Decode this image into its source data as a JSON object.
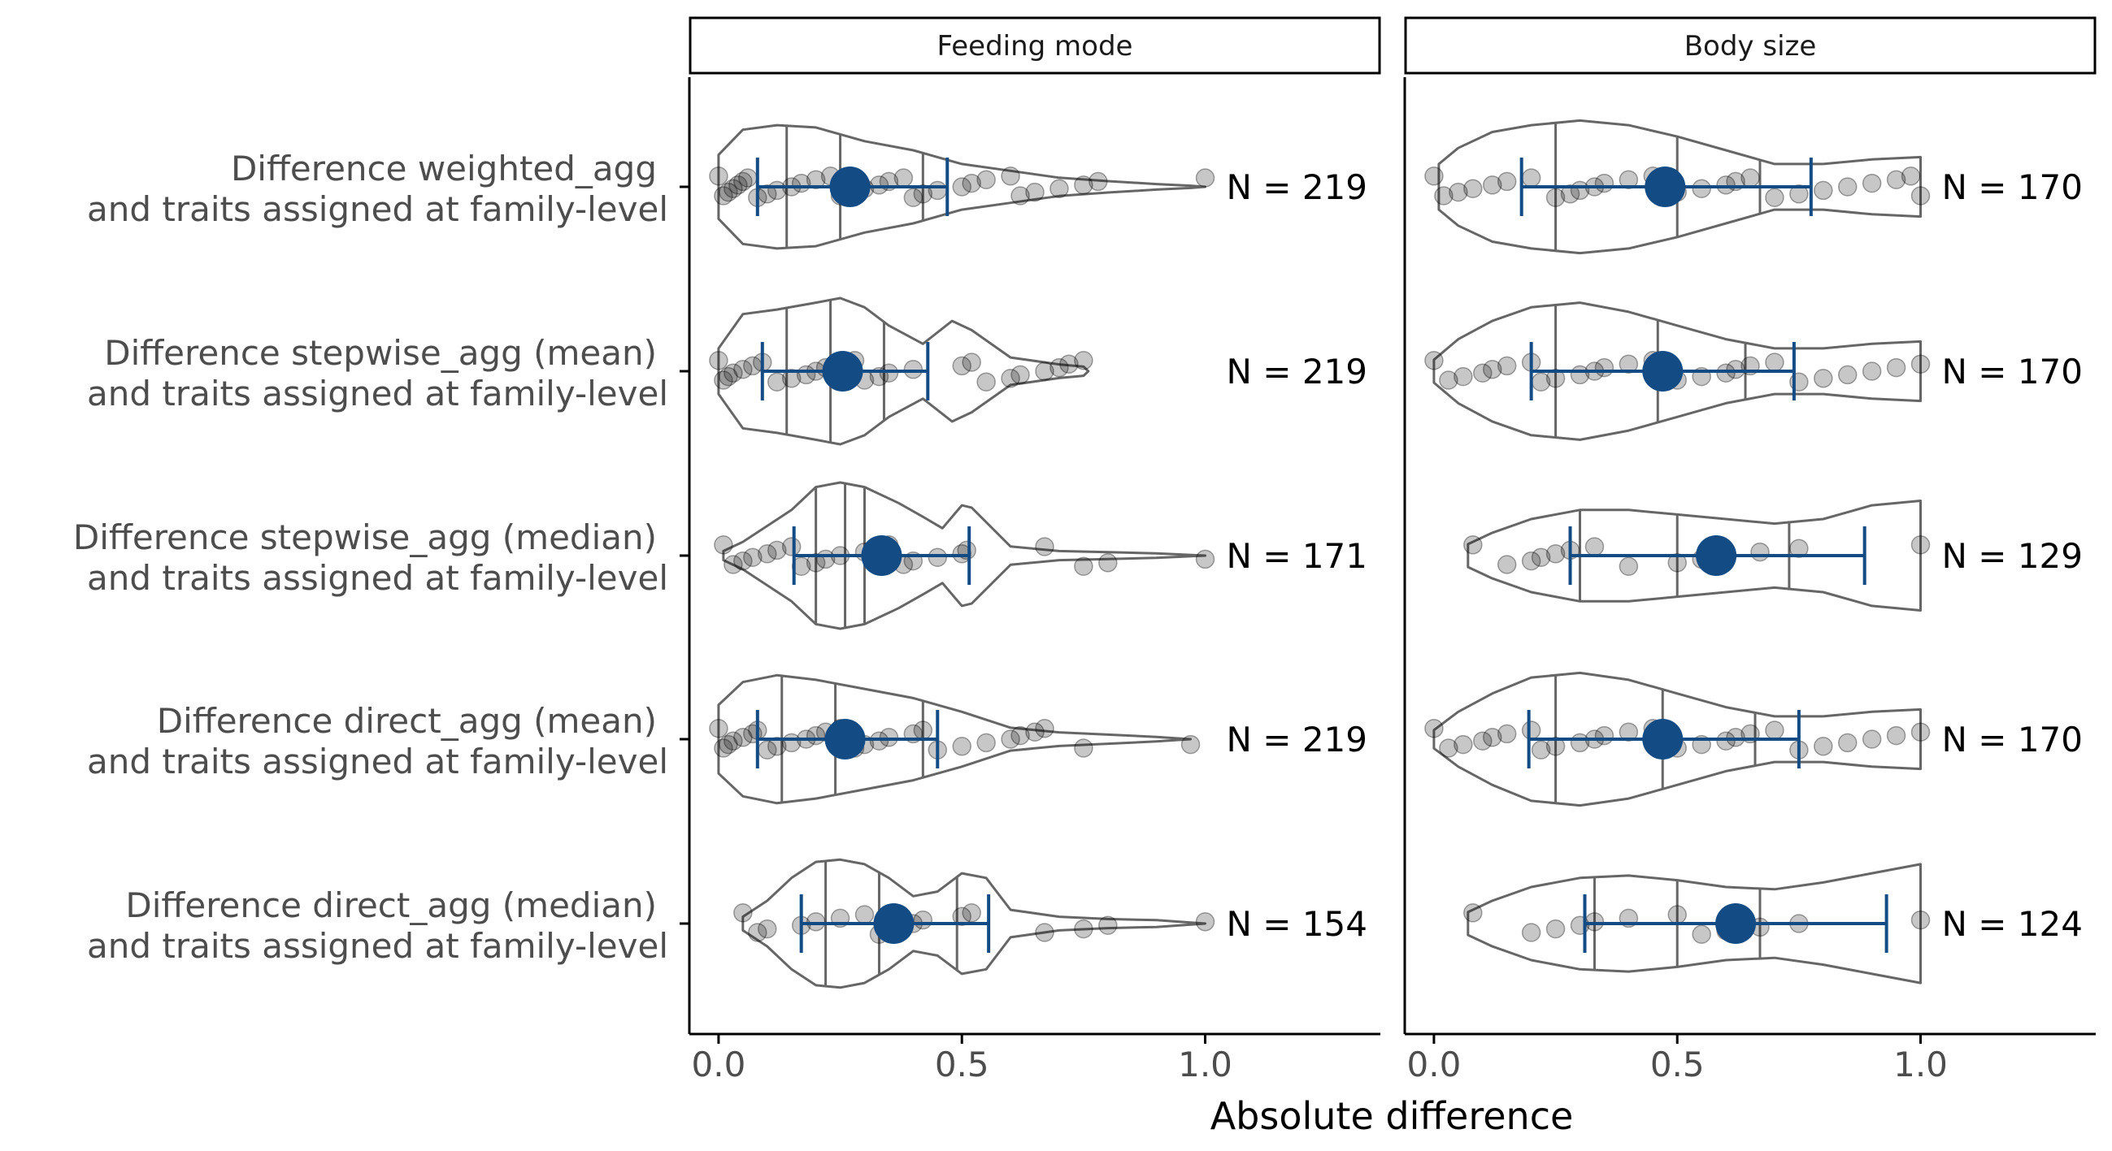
{
  "chart_data": {
    "type": "violin",
    "xlabel": "Absolute difference",
    "xlim": [
      -0.06,
      1.36
    ],
    "x_ticks": [
      {
        "value": 0.0,
        "label": "0.0"
      },
      {
        "value": 0.5,
        "label": "0.5"
      },
      {
        "value": 1.0,
        "label": "1.0"
      }
    ],
    "categories": [
      [
        "Difference weighted_agg",
        "and traits assigned at family-level"
      ],
      [
        "Difference stepwise_agg (mean)",
        "and traits assigned at family-level"
      ],
      [
        "Difference stepwise_agg (median)",
        "and traits assigned at family-level"
      ],
      [
        "Difference direct_agg (mean)",
        "and traits assigned at family-level"
      ],
      [
        "Difference direct_agg (median)",
        "and traits assigned at family-level"
      ]
    ],
    "colors": {
      "summary": "#134b85",
      "violin": "#666666",
      "points": "#000000",
      "axis": "#000000",
      "strip_bg": "#ffffff"
    },
    "panels": [
      {
        "strip": "Feeding mode",
        "rows": [
          {
            "n_label": "N = 219",
            "mean": 0.27,
            "low": 0.08,
            "high": 0.47,
            "quantiles": [
              0.14,
              0.25,
              0.42
            ],
            "violin": [
              [
                0.0,
                0.14
              ],
              [
                0.05,
                0.25
              ],
              [
                0.12,
                0.27
              ],
              [
                0.2,
                0.26
              ],
              [
                0.3,
                0.2
              ],
              [
                0.4,
                0.16
              ],
              [
                0.5,
                0.1
              ],
              [
                0.6,
                0.07
              ],
              [
                0.7,
                0.04
              ],
              [
                0.8,
                0.025
              ],
              [
                0.9,
                0.012
              ],
              [
                0.97,
                0.005
              ],
              [
                1.0,
                0
              ]
            ],
            "points": [
              0.0,
              0.01,
              0.02,
              0.03,
              0.04,
              0.05,
              0.06,
              0.08,
              0.1,
              0.12,
              0.15,
              0.17,
              0.2,
              0.23,
              0.25,
              0.28,
              0.3,
              0.33,
              0.35,
              0.38,
              0.4,
              0.42,
              0.45,
              0.5,
              0.52,
              0.55,
              0.6,
              0.62,
              0.65,
              0.7,
              0.75,
              0.78,
              1.0
            ]
          },
          {
            "n_label": "N = 219",
            "mean": 0.255,
            "low": 0.09,
            "high": 0.43,
            "quantiles": [
              0.14,
              0.23,
              0.34
            ],
            "violin": [
              [
                0.0,
                0.1
              ],
              [
                0.05,
                0.25
              ],
              [
                0.12,
                0.27
              ],
              [
                0.2,
                0.3
              ],
              [
                0.25,
                0.32
              ],
              [
                0.3,
                0.28
              ],
              [
                0.35,
                0.2
              ],
              [
                0.42,
                0.12
              ],
              [
                0.48,
                0.22
              ],
              [
                0.52,
                0.18
              ],
              [
                0.6,
                0.06
              ],
              [
                0.7,
                0.03
              ],
              [
                0.75,
                0.02
              ],
              [
                0.76,
                0
              ]
            ],
            "points": [
              0.0,
              0.01,
              0.02,
              0.03,
              0.05,
              0.07,
              0.09,
              0.12,
              0.15,
              0.18,
              0.2,
              0.22,
              0.25,
              0.28,
              0.3,
              0.33,
              0.35,
              0.4,
              0.5,
              0.52,
              0.55,
              0.6,
              0.62,
              0.67,
              0.7,
              0.72,
              0.75
            ]
          },
          {
            "n_label": "N = 171",
            "mean": 0.335,
            "low": 0.155,
            "high": 0.515,
            "quantiles": [
              0.2,
              0.26,
              0.3
            ],
            "violin": [
              [
                0.01,
                0.02
              ],
              [
                0.05,
                0.06
              ],
              [
                0.15,
                0.2
              ],
              [
                0.2,
                0.3
              ],
              [
                0.25,
                0.32
              ],
              [
                0.3,
                0.3
              ],
              [
                0.37,
                0.23
              ],
              [
                0.42,
                0.17
              ],
              [
                0.46,
                0.12
              ],
              [
                0.5,
                0.22
              ],
              [
                0.52,
                0.21
              ],
              [
                0.6,
                0.04
              ],
              [
                0.7,
                0.02
              ],
              [
                0.8,
                0.015
              ],
              [
                0.9,
                0.01
              ],
              [
                1.0,
                0
              ]
            ],
            "points": [
              0.01,
              0.03,
              0.05,
              0.07,
              0.1,
              0.12,
              0.15,
              0.17,
              0.2,
              0.22,
              0.25,
              0.3,
              0.33,
              0.35,
              0.38,
              0.4,
              0.45,
              0.5,
              0.51,
              0.67,
              0.75,
              0.8,
              1.0
            ]
          },
          {
            "n_label": "N = 219",
            "mean": 0.26,
            "low": 0.08,
            "high": 0.45,
            "quantiles": [
              0.13,
              0.24,
              0.42
            ],
            "violin": [
              [
                0.0,
                0.15
              ],
              [
                0.05,
                0.25
              ],
              [
                0.12,
                0.28
              ],
              [
                0.2,
                0.26
              ],
              [
                0.3,
                0.22
              ],
              [
                0.4,
                0.18
              ],
              [
                0.5,
                0.12
              ],
              [
                0.6,
                0.05
              ],
              [
                0.7,
                0.03
              ],
              [
                0.8,
                0.02
              ],
              [
                0.9,
                0.01
              ],
              [
                0.97,
                0
              ]
            ],
            "points": [
              0.0,
              0.01,
              0.02,
              0.03,
              0.05,
              0.07,
              0.08,
              0.1,
              0.12,
              0.15,
              0.18,
              0.2,
              0.22,
              0.25,
              0.28,
              0.3,
              0.33,
              0.35,
              0.4,
              0.42,
              0.45,
              0.5,
              0.55,
              0.6,
              0.62,
              0.65,
              0.67,
              0.75,
              0.97
            ]
          },
          {
            "n_label": "N = 154",
            "mean": 0.36,
            "low": 0.17,
            "high": 0.555,
            "quantiles": [
              0.22,
              0.33,
              0.49
            ],
            "violin": [
              [
                0.05,
                0.03
              ],
              [
                0.1,
                0.1
              ],
              [
                0.15,
                0.2
              ],
              [
                0.2,
                0.27
              ],
              [
                0.25,
                0.28
              ],
              [
                0.3,
                0.26
              ],
              [
                0.35,
                0.2
              ],
              [
                0.4,
                0.12
              ],
              [
                0.45,
                0.14
              ],
              [
                0.5,
                0.22
              ],
              [
                0.55,
                0.2
              ],
              [
                0.6,
                0.06
              ],
              [
                0.7,
                0.03
              ],
              [
                0.8,
                0.02
              ],
              [
                0.9,
                0.015
              ],
              [
                1.0,
                0
              ]
            ],
            "points": [
              0.05,
              0.08,
              0.1,
              0.17,
              0.2,
              0.25,
              0.3,
              0.33,
              0.35,
              0.38,
              0.4,
              0.42,
              0.5,
              0.52,
              0.67,
              0.75,
              0.8,
              1.0
            ]
          }
        ]
      },
      {
        "strip": "Body size",
        "rows": [
          {
            "n_label": "N = 170",
            "mean": 0.475,
            "low": 0.18,
            "high": 0.775,
            "quantiles": [
              0.25,
              0.5,
              0.67
            ],
            "violin": [
              [
                0.01,
                0.1
              ],
              [
                0.05,
                0.17
              ],
              [
                0.12,
                0.24
              ],
              [
                0.2,
                0.27
              ],
              [
                0.3,
                0.29
              ],
              [
                0.4,
                0.27
              ],
              [
                0.5,
                0.22
              ],
              [
                0.6,
                0.16
              ],
              [
                0.7,
                0.1
              ],
              [
                0.8,
                0.1
              ],
              [
                0.9,
                0.12
              ],
              [
                1.0,
                0.13
              ]
            ],
            "points": [
              0.0,
              0.02,
              0.05,
              0.08,
              0.12,
              0.15,
              0.2,
              0.25,
              0.28,
              0.3,
              0.33,
              0.35,
              0.4,
              0.45,
              0.48,
              0.5,
              0.55,
              0.6,
              0.62,
              0.65,
              0.7,
              0.75,
              0.8,
              0.85,
              0.9,
              0.95,
              0.98,
              1.0
            ]
          },
          {
            "n_label": "N = 170",
            "mean": 0.47,
            "low": 0.2,
            "high": 0.74,
            "quantiles": [
              0.25,
              0.46,
              0.64
            ],
            "violin": [
              [
                0.0,
                0.05
              ],
              [
                0.05,
                0.14
              ],
              [
                0.12,
                0.22
              ],
              [
                0.2,
                0.28
              ],
              [
                0.3,
                0.3
              ],
              [
                0.4,
                0.26
              ],
              [
                0.5,
                0.2
              ],
              [
                0.6,
                0.14
              ],
              [
                0.7,
                0.1
              ],
              [
                0.8,
                0.1
              ],
              [
                0.9,
                0.12
              ],
              [
                1.0,
                0.13
              ]
            ],
            "points": [
              0.0,
              0.03,
              0.06,
              0.1,
              0.12,
              0.15,
              0.2,
              0.22,
              0.25,
              0.3,
              0.33,
              0.35,
              0.4,
              0.45,
              0.5,
              0.55,
              0.6,
              0.62,
              0.65,
              0.7,
              0.75,
              0.8,
              0.85,
              0.9,
              0.95,
              1.0
            ]
          },
          {
            "n_label": "N = 129",
            "mean": 0.58,
            "low": 0.28,
            "high": 0.885,
            "quantiles": [
              0.3,
              0.5,
              0.73
            ],
            "violin": [
              [
                0.07,
                0.05
              ],
              [
                0.12,
                0.1
              ],
              [
                0.2,
                0.16
              ],
              [
                0.3,
                0.2
              ],
              [
                0.4,
                0.2
              ],
              [
                0.5,
                0.18
              ],
              [
                0.6,
                0.16
              ],
              [
                0.7,
                0.14
              ],
              [
                0.8,
                0.16
              ],
              [
                0.9,
                0.22
              ],
              [
                1.0,
                0.24
              ]
            ],
            "points": [
              0.08,
              0.15,
              0.2,
              0.22,
              0.25,
              0.28,
              0.33,
              0.4,
              0.5,
              0.55,
              0.6,
              0.67,
              0.75,
              1.0
            ]
          },
          {
            "n_label": "N = 170",
            "mean": 0.47,
            "low": 0.195,
            "high": 0.75,
            "quantiles": [
              0.25,
              0.47,
              0.66
            ],
            "violin": [
              [
                0.0,
                0.04
              ],
              [
                0.05,
                0.12
              ],
              [
                0.12,
                0.2
              ],
              [
                0.2,
                0.27
              ],
              [
                0.3,
                0.29
              ],
              [
                0.4,
                0.26
              ],
              [
                0.5,
                0.2
              ],
              [
                0.6,
                0.14
              ],
              [
                0.7,
                0.1
              ],
              [
                0.8,
                0.1
              ],
              [
                0.9,
                0.12
              ],
              [
                1.0,
                0.13
              ]
            ],
            "points": [
              0.0,
              0.03,
              0.06,
              0.1,
              0.12,
              0.15,
              0.2,
              0.22,
              0.25,
              0.3,
              0.33,
              0.35,
              0.4,
              0.45,
              0.5,
              0.55,
              0.6,
              0.62,
              0.65,
              0.7,
              0.75,
              0.8,
              0.85,
              0.9,
              0.95,
              1.0
            ]
          },
          {
            "n_label": "N = 124",
            "mean": 0.62,
            "low": 0.31,
            "high": 0.93,
            "quantiles": [
              0.33,
              0.5,
              0.67
            ],
            "violin": [
              [
                0.07,
                0.05
              ],
              [
                0.12,
                0.1
              ],
              [
                0.2,
                0.16
              ],
              [
                0.3,
                0.2
              ],
              [
                0.4,
                0.21
              ],
              [
                0.5,
                0.19
              ],
              [
                0.6,
                0.16
              ],
              [
                0.7,
                0.15
              ],
              [
                0.8,
                0.18
              ],
              [
                0.9,
                0.22
              ],
              [
                1.0,
                0.26
              ]
            ],
            "points": [
              0.08,
              0.2,
              0.25,
              0.3,
              0.33,
              0.4,
              0.5,
              0.55,
              0.6,
              0.67,
              0.75,
              1.0
            ]
          }
        ]
      }
    ]
  }
}
